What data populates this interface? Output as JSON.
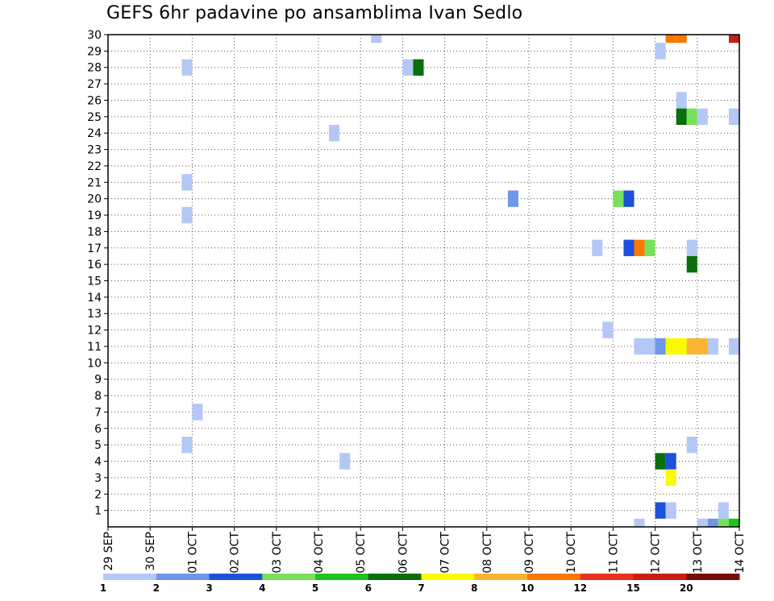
{
  "chart_data": {
    "type": "heatmap",
    "title": "GEFS 6hr padavine po ansamblima Ivan Sedlo",
    "xlabel": "",
    "ylabel": "",
    "x_ticks": [
      "29 SEP",
      "30 SEP",
      "01 OCT",
      "02 OCT",
      "03 OCT",
      "04 OCT",
      "05 OCT",
      "06 OCT",
      "07 OCT",
      "08 OCT",
      "09 OCT",
      "10 OCT",
      "11 OCT",
      "12 OCT",
      "13 OCT",
      "14 OCT"
    ],
    "x_step_hours": 6,
    "x_range_steps": [
      0,
      60
    ],
    "y_ticks": [
      1,
      2,
      3,
      4,
      5,
      6,
      7,
      8,
      9,
      10,
      11,
      12,
      13,
      14,
      15,
      16,
      17,
      18,
      19,
      20,
      21,
      22,
      23,
      24,
      25,
      26,
      27,
      28,
      29,
      30
    ],
    "y_range": [
      0,
      30
    ],
    "grid": true,
    "colorbar": {
      "levels": [
        1,
        2,
        3,
        4,
        5,
        6,
        7,
        8,
        10,
        12,
        15,
        20
      ],
      "labels": [
        "1",
        "2",
        "3",
        "4",
        "5",
        "6",
        "7",
        "8",
        "10",
        "12",
        "15",
        "20"
      ],
      "colors": [
        "#b4c8f5",
        "#6e96ea",
        "#1e50dc",
        "#78e05a",
        "#1ec31e",
        "#0a6e0a",
        "#fafa00",
        "#fab432",
        "#fa7800",
        "#e6321e",
        "#c81e14",
        "#780a0a"
      ]
    },
    "cells": [
      {
        "x": 25.5,
        "y": 30,
        "v": 1.5
      },
      {
        "x": 53.5,
        "y": 30,
        "v": 10
      },
      {
        "x": 54.5,
        "y": 30,
        "v": 10
      },
      {
        "x": 59.5,
        "y": 30,
        "v": 15
      },
      {
        "x": 52.5,
        "y": 29,
        "v": 1.5
      },
      {
        "x": 7.5,
        "y": 28,
        "v": 1.5
      },
      {
        "x": 28.5,
        "y": 28,
        "v": 1.5
      },
      {
        "x": 29.5,
        "y": 28,
        "v": 6.5
      },
      {
        "x": 54.5,
        "y": 26,
        "v": 1.5
      },
      {
        "x": 54.5,
        "y": 25,
        "v": 6.5
      },
      {
        "x": 55.5,
        "y": 25,
        "v": 4.5
      },
      {
        "x": 56.5,
        "y": 25,
        "v": 1.5
      },
      {
        "x": 59.5,
        "y": 25,
        "v": 1.5
      },
      {
        "x": 21.5,
        "y": 24,
        "v": 1.5
      },
      {
        "x": 7.5,
        "y": 21,
        "v": 1.5
      },
      {
        "x": 38.5,
        "y": 20,
        "v": 2.5
      },
      {
        "x": 48.5,
        "y": 20,
        "v": 4.5
      },
      {
        "x": 49.5,
        "y": 20,
        "v": 3.5
      },
      {
        "x": 7.5,
        "y": 19,
        "v": 1.5
      },
      {
        "x": 46.5,
        "y": 17,
        "v": 1.5
      },
      {
        "x": 49.5,
        "y": 17,
        "v": 3.5
      },
      {
        "x": 50.5,
        "y": 17,
        "v": 10
      },
      {
        "x": 51.5,
        "y": 17,
        "v": 4.5
      },
      {
        "x": 55.5,
        "y": 17,
        "v": 1.5
      },
      {
        "x": 55.5,
        "y": 16,
        "v": 6.5
      },
      {
        "x": 47.5,
        "y": 12,
        "v": 1.5
      },
      {
        "x": 50.5,
        "y": 11,
        "v": 1.5
      },
      {
        "x": 51.5,
        "y": 11,
        "v": 1.5
      },
      {
        "x": 52.5,
        "y": 11,
        "v": 2.5
      },
      {
        "x": 53.5,
        "y": 11,
        "v": 7.5
      },
      {
        "x": 54.5,
        "y": 11,
        "v": 7.5
      },
      {
        "x": 55.5,
        "y": 11,
        "v": 9
      },
      {
        "x": 56.5,
        "y": 11,
        "v": 9
      },
      {
        "x": 57.5,
        "y": 11,
        "v": 1.5
      },
      {
        "x": 59.5,
        "y": 11,
        "v": 1.5
      },
      {
        "x": 8.5,
        "y": 7,
        "v": 1.5
      },
      {
        "x": 7.5,
        "y": 5,
        "v": 1.5
      },
      {
        "x": 55.5,
        "y": 5,
        "v": 1.5
      },
      {
        "x": 22.5,
        "y": 4,
        "v": 1.5
      },
      {
        "x": 52.5,
        "y": 4,
        "v": 6.5
      },
      {
        "x": 53.5,
        "y": 4,
        "v": 3.5
      },
      {
        "x": 53.5,
        "y": 3,
        "v": 7.5
      },
      {
        "x": 52.5,
        "y": 1,
        "v": 3.5
      },
      {
        "x": 53.5,
        "y": 1,
        "v": 1.5
      },
      {
        "x": 58.5,
        "y": 1,
        "v": 1.5
      },
      {
        "x": 50.5,
        "y": 0,
        "v": 1.5
      },
      {
        "x": 56.5,
        "y": 0,
        "v": 1.5
      },
      {
        "x": 57.5,
        "y": 0,
        "v": 2.5
      },
      {
        "x": 58.5,
        "y": 0,
        "v": 4.5
      },
      {
        "x": 59.5,
        "y": 0,
        "v": 5.5
      }
    ]
  }
}
